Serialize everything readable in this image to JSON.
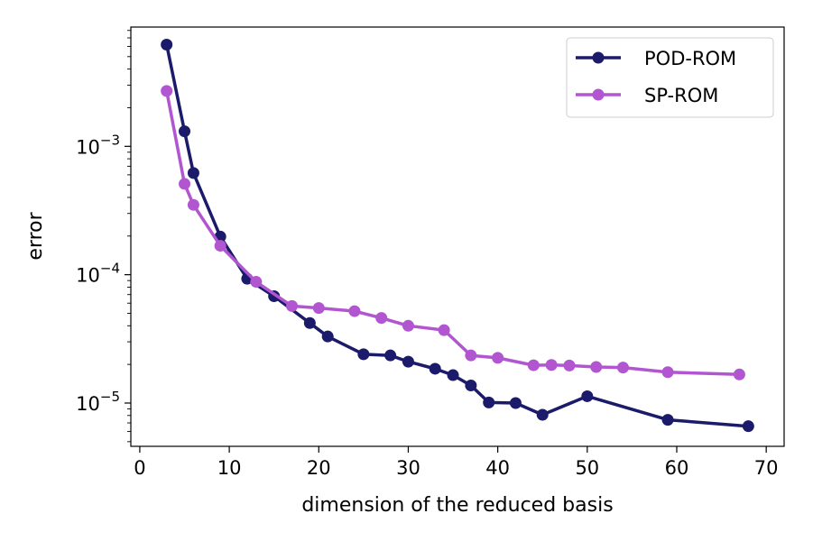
{
  "chart_data": {
    "type": "line",
    "title": "",
    "xlabel": "dimension of the reduced basis",
    "ylabel": "error",
    "xlim": [
      -1,
      72
    ],
    "ylim": [
      4.6e-06,
      0.0085
    ],
    "yscale": "log",
    "x_ticks": [
      0,
      10,
      20,
      30,
      40,
      50,
      60,
      70
    ],
    "y_ticks": [
      {
        "value": 1e-05,
        "base": "10",
        "exponent": "−5"
      },
      {
        "value": 0.0001,
        "base": "10",
        "exponent": "−4"
      },
      {
        "value": 0.001,
        "base": "10",
        "exponent": "−3"
      }
    ],
    "grid": false,
    "legend_position": "top-right",
    "series": [
      {
        "name": "POD-ROM",
        "color": "#1b1a6b",
        "x": [
          3,
          5,
          6,
          9,
          12,
          15,
          19,
          21,
          25,
          28,
          30,
          33,
          35,
          37,
          39,
          42,
          45,
          50,
          59,
          68
        ],
        "y": [
          0.0062,
          0.00131,
          0.00062,
          0.000198,
          9.3e-05,
          6.8e-05,
          4.2e-05,
          3.3e-05,
          2.4e-05,
          2.35e-05,
          2.1e-05,
          1.85e-05,
          1.65e-05,
          1.37e-05,
          1.01e-05,
          1e-05,
          8.1e-06,
          1.13e-05,
          7.4e-06,
          6.6e-06
        ]
      },
      {
        "name": "SP-ROM",
        "color": "#b255d1",
        "x": [
          3,
          5,
          6,
          9,
          13,
          17,
          20,
          24,
          27,
          30,
          34,
          37,
          40,
          44,
          46,
          48,
          51,
          54,
          59,
          67
        ],
        "y": [
          0.0027,
          0.00051,
          0.00035,
          0.000168,
          8.8e-05,
          5.7e-05,
          5.5e-05,
          5.2e-05,
          4.6e-05,
          4e-05,
          3.7e-05,
          2.35e-05,
          2.25e-05,
          1.97e-05,
          1.98e-05,
          1.96e-05,
          1.91e-05,
          1.89e-05,
          1.74e-05,
          1.67e-05
        ]
      }
    ]
  }
}
